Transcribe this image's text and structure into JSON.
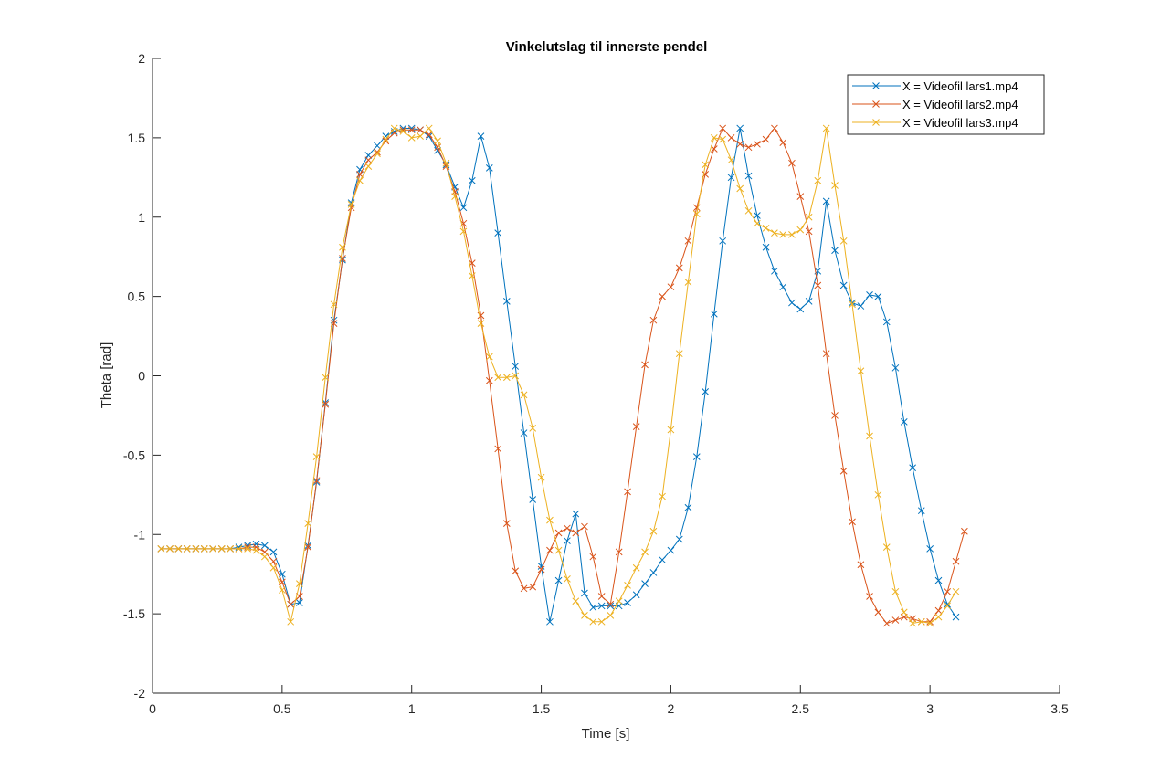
{
  "chart_data": {
    "type": "line",
    "title": "Vinkelutslag til innerste pendel",
    "xlabel": "Time [s]",
    "ylabel": "Theta [rad]",
    "xlim": [
      0,
      3.5
    ],
    "ylim": [
      -2,
      2
    ],
    "xticks": [
      0,
      0.5,
      1,
      1.5,
      2,
      2.5,
      3,
      3.5
    ],
    "xtick_labels": [
      "0",
      "0.5",
      "1",
      "1.5",
      "2",
      "2.5",
      "3",
      "3.5"
    ],
    "yticks": [
      -2,
      -1.5,
      -1,
      -0.5,
      0,
      0.5,
      1,
      1.5,
      2
    ],
    "ytick_labels": [
      "-2",
      "-1.5",
      "-1",
      "-0.5",
      "0",
      "0.5",
      "1",
      "1.5",
      "2"
    ],
    "grid": false,
    "legend_position": "top-right",
    "marker": "x",
    "series": [
      {
        "name": "X = Videofil  lars1.mp4",
        "color": "#0072BD",
        "points": [
          [
            0.033,
            -1.09
          ],
          [
            0.067,
            -1.09
          ],
          [
            0.1,
            -1.09
          ],
          [
            0.133,
            -1.09
          ],
          [
            0.167,
            -1.09
          ],
          [
            0.2,
            -1.09
          ],
          [
            0.233,
            -1.09
          ],
          [
            0.267,
            -1.09
          ],
          [
            0.3,
            -1.09
          ],
          [
            0.333,
            -1.08
          ],
          [
            0.367,
            -1.07
          ],
          [
            0.4,
            -1.06
          ],
          [
            0.433,
            -1.07
          ],
          [
            0.467,
            -1.11
          ],
          [
            0.5,
            -1.25
          ],
          [
            0.533,
            -1.44
          ],
          [
            0.567,
            -1.43
          ],
          [
            0.6,
            -1.07
          ],
          [
            0.633,
            -0.67
          ],
          [
            0.667,
            -0.17
          ],
          [
            0.7,
            0.35
          ],
          [
            0.733,
            0.73
          ],
          [
            0.767,
            1.09
          ],
          [
            0.8,
            1.3
          ],
          [
            0.833,
            1.39
          ],
          [
            0.867,
            1.45
          ],
          [
            0.9,
            1.51
          ],
          [
            0.933,
            1.54
          ],
          [
            0.967,
            1.56
          ],
          [
            1.0,
            1.56
          ],
          [
            1.033,
            1.55
          ],
          [
            1.067,
            1.51
          ],
          [
            1.1,
            1.42
          ],
          [
            1.133,
            1.33
          ],
          [
            1.167,
            1.19
          ],
          [
            1.2,
            1.06
          ],
          [
            1.233,
            1.23
          ],
          [
            1.267,
            1.51
          ],
          [
            1.3,
            1.31
          ],
          [
            1.333,
            0.9
          ],
          [
            1.367,
            0.47
          ],
          [
            1.4,
            0.06
          ],
          [
            1.433,
            -0.36
          ],
          [
            1.467,
            -0.78
          ],
          [
            1.5,
            -1.2
          ],
          [
            1.533,
            -1.55
          ],
          [
            1.567,
            -1.29
          ],
          [
            1.6,
            -1.04
          ],
          [
            1.633,
            -0.87
          ],
          [
            1.667,
            -1.37
          ],
          [
            1.7,
            -1.46
          ],
          [
            1.733,
            -1.45
          ],
          [
            1.767,
            -1.45
          ],
          [
            1.8,
            -1.45
          ],
          [
            1.833,
            -1.43
          ],
          [
            1.867,
            -1.38
          ],
          [
            1.9,
            -1.31
          ],
          [
            1.933,
            -1.24
          ],
          [
            1.967,
            -1.16
          ],
          [
            2.0,
            -1.1
          ],
          [
            2.033,
            -1.03
          ],
          [
            2.067,
            -0.83
          ],
          [
            2.1,
            -0.51
          ],
          [
            2.133,
            -0.1
          ],
          [
            2.167,
            0.39
          ],
          [
            2.2,
            0.85
          ],
          [
            2.233,
            1.25
          ],
          [
            2.267,
            1.56
          ],
          [
            2.3,
            1.26
          ],
          [
            2.333,
            1.01
          ],
          [
            2.367,
            0.81
          ],
          [
            2.4,
            0.66
          ],
          [
            2.433,
            0.56
          ],
          [
            2.467,
            0.46
          ],
          [
            2.5,
            0.42
          ],
          [
            2.533,
            0.47
          ],
          [
            2.567,
            0.66
          ],
          [
            2.6,
            1.1
          ],
          [
            2.633,
            0.79
          ],
          [
            2.667,
            0.57
          ],
          [
            2.7,
            0.46
          ],
          [
            2.733,
            0.44
          ],
          [
            2.767,
            0.51
          ],
          [
            2.8,
            0.5
          ],
          [
            2.833,
            0.34
          ],
          [
            2.867,
            0.05
          ],
          [
            2.9,
            -0.29
          ],
          [
            2.933,
            -0.58
          ],
          [
            2.967,
            -0.85
          ],
          [
            3.0,
            -1.09
          ],
          [
            3.033,
            -1.29
          ],
          [
            3.067,
            -1.44
          ],
          [
            3.1,
            -1.52
          ]
        ]
      },
      {
        "name": "X = Videofil  lars2.mp4",
        "color": "#D95319",
        "points": [
          [
            0.033,
            -1.09
          ],
          [
            0.067,
            -1.09
          ],
          [
            0.1,
            -1.09
          ],
          [
            0.133,
            -1.09
          ],
          [
            0.167,
            -1.09
          ],
          [
            0.2,
            -1.09
          ],
          [
            0.233,
            -1.09
          ],
          [
            0.267,
            -1.09
          ],
          [
            0.3,
            -1.09
          ],
          [
            0.333,
            -1.09
          ],
          [
            0.367,
            -1.08
          ],
          [
            0.4,
            -1.08
          ],
          [
            0.433,
            -1.11
          ],
          [
            0.467,
            -1.17
          ],
          [
            0.5,
            -1.3
          ],
          [
            0.533,
            -1.44
          ],
          [
            0.567,
            -1.39
          ],
          [
            0.6,
            -1.08
          ],
          [
            0.633,
            -0.66
          ],
          [
            0.667,
            -0.18
          ],
          [
            0.7,
            0.33
          ],
          [
            0.733,
            0.74
          ],
          [
            0.767,
            1.06
          ],
          [
            0.8,
            1.27
          ],
          [
            0.833,
            1.36
          ],
          [
            0.867,
            1.41
          ],
          [
            0.9,
            1.48
          ],
          [
            0.933,
            1.53
          ],
          [
            0.967,
            1.55
          ],
          [
            1.0,
            1.55
          ],
          [
            1.033,
            1.55
          ],
          [
            1.067,
            1.52
          ],
          [
            1.1,
            1.44
          ],
          [
            1.133,
            1.32
          ],
          [
            1.167,
            1.16
          ],
          [
            1.2,
            0.96
          ],
          [
            1.233,
            0.71
          ],
          [
            1.267,
            0.38
          ],
          [
            1.3,
            -0.03
          ],
          [
            1.333,
            -0.46
          ],
          [
            1.367,
            -0.93
          ],
          [
            1.4,
            -1.23
          ],
          [
            1.433,
            -1.34
          ],
          [
            1.467,
            -1.33
          ],
          [
            1.5,
            -1.22
          ],
          [
            1.533,
            -1.1
          ],
          [
            1.567,
            -0.99
          ],
          [
            1.6,
            -0.96
          ],
          [
            1.633,
            -0.99
          ],
          [
            1.667,
            -0.95
          ],
          [
            1.7,
            -1.14
          ],
          [
            1.733,
            -1.39
          ],
          [
            1.767,
            -1.44
          ],
          [
            1.8,
            -1.11
          ],
          [
            1.833,
            -0.73
          ],
          [
            1.867,
            -0.32
          ],
          [
            1.9,
            0.07
          ],
          [
            1.933,
            0.35
          ],
          [
            1.967,
            0.5
          ],
          [
            2.0,
            0.56
          ],
          [
            2.033,
            0.68
          ],
          [
            2.067,
            0.85
          ],
          [
            2.1,
            1.06
          ],
          [
            2.133,
            1.27
          ],
          [
            2.167,
            1.43
          ],
          [
            2.2,
            1.56
          ],
          [
            2.233,
            1.5
          ],
          [
            2.267,
            1.46
          ],
          [
            2.3,
            1.44
          ],
          [
            2.333,
            1.46
          ],
          [
            2.367,
            1.49
          ],
          [
            2.4,
            1.56
          ],
          [
            2.433,
            1.47
          ],
          [
            2.467,
            1.34
          ],
          [
            2.5,
            1.13
          ],
          [
            2.533,
            0.91
          ],
          [
            2.567,
            0.57
          ],
          [
            2.6,
            0.14
          ],
          [
            2.633,
            -0.25
          ],
          [
            2.667,
            -0.6
          ],
          [
            2.7,
            -0.92
          ],
          [
            2.733,
            -1.19
          ],
          [
            2.767,
            -1.39
          ],
          [
            2.8,
            -1.49
          ],
          [
            2.833,
            -1.56
          ],
          [
            2.867,
            -1.54
          ],
          [
            2.9,
            -1.52
          ],
          [
            2.933,
            -1.53
          ],
          [
            2.967,
            -1.55
          ],
          [
            3.0,
            -1.55
          ],
          [
            3.033,
            -1.48
          ],
          [
            3.067,
            -1.36
          ],
          [
            3.1,
            -1.17
          ],
          [
            3.133,
            -0.98
          ]
        ]
      },
      {
        "name": "X = Videofil  lars3.mp4",
        "color": "#EDB120",
        "points": [
          [
            0.033,
            -1.09
          ],
          [
            0.067,
            -1.09
          ],
          [
            0.1,
            -1.09
          ],
          [
            0.133,
            -1.09
          ],
          [
            0.167,
            -1.09
          ],
          [
            0.2,
            -1.09
          ],
          [
            0.233,
            -1.09
          ],
          [
            0.267,
            -1.09
          ],
          [
            0.3,
            -1.09
          ],
          [
            0.333,
            -1.09
          ],
          [
            0.367,
            -1.09
          ],
          [
            0.4,
            -1.1
          ],
          [
            0.433,
            -1.14
          ],
          [
            0.467,
            -1.21
          ],
          [
            0.5,
            -1.35
          ],
          [
            0.533,
            -1.55
          ],
          [
            0.567,
            -1.31
          ],
          [
            0.6,
            -0.93
          ],
          [
            0.633,
            -0.51
          ],
          [
            0.667,
            -0.01
          ],
          [
            0.7,
            0.45
          ],
          [
            0.733,
            0.81
          ],
          [
            0.767,
            1.08
          ],
          [
            0.8,
            1.23
          ],
          [
            0.833,
            1.32
          ],
          [
            0.867,
            1.4
          ],
          [
            0.9,
            1.49
          ],
          [
            0.933,
            1.56
          ],
          [
            0.967,
            1.54
          ],
          [
            1.0,
            1.5
          ],
          [
            1.033,
            1.51
          ],
          [
            1.067,
            1.56
          ],
          [
            1.1,
            1.48
          ],
          [
            1.133,
            1.34
          ],
          [
            1.167,
            1.13
          ],
          [
            1.2,
            0.91
          ],
          [
            1.233,
            0.63
          ],
          [
            1.267,
            0.33
          ],
          [
            1.3,
            0.12
          ],
          [
            1.333,
            -0.01
          ],
          [
            1.367,
            -0.01
          ],
          [
            1.4,
            0.0
          ],
          [
            1.433,
            -0.12
          ],
          [
            1.467,
            -0.33
          ],
          [
            1.5,
            -0.64
          ],
          [
            1.533,
            -0.91
          ],
          [
            1.567,
            -1.1
          ],
          [
            1.6,
            -1.28
          ],
          [
            1.633,
            -1.42
          ],
          [
            1.667,
            -1.51
          ],
          [
            1.7,
            -1.55
          ],
          [
            1.733,
            -1.55
          ],
          [
            1.767,
            -1.51
          ],
          [
            1.8,
            -1.42
          ],
          [
            1.833,
            -1.32
          ],
          [
            1.867,
            -1.21
          ],
          [
            1.9,
            -1.11
          ],
          [
            1.933,
            -0.98
          ],
          [
            1.967,
            -0.76
          ],
          [
            2.0,
            -0.34
          ],
          [
            2.033,
            0.14
          ],
          [
            2.067,
            0.59
          ],
          [
            2.1,
            1.02
          ],
          [
            2.133,
            1.33
          ],
          [
            2.167,
            1.5
          ],
          [
            2.2,
            1.49
          ],
          [
            2.233,
            1.36
          ],
          [
            2.267,
            1.18
          ],
          [
            2.3,
            1.04
          ],
          [
            2.333,
            0.96
          ],
          [
            2.367,
            0.93
          ],
          [
            2.4,
            0.9
          ],
          [
            2.433,
            0.89
          ],
          [
            2.467,
            0.89
          ],
          [
            2.5,
            0.92
          ],
          [
            2.533,
            1.0
          ],
          [
            2.567,
            1.23
          ],
          [
            2.6,
            1.56
          ],
          [
            2.633,
            1.2
          ],
          [
            2.667,
            0.85
          ],
          [
            2.7,
            0.45
          ],
          [
            2.733,
            0.03
          ],
          [
            2.767,
            -0.38
          ],
          [
            2.8,
            -0.75
          ],
          [
            2.833,
            -1.08
          ],
          [
            2.867,
            -1.36
          ],
          [
            2.9,
            -1.49
          ],
          [
            2.933,
            -1.56
          ],
          [
            2.967,
            -1.55
          ],
          [
            3.0,
            -1.56
          ],
          [
            3.033,
            -1.52
          ],
          [
            3.067,
            -1.45
          ],
          [
            3.1,
            -1.36
          ]
        ]
      }
    ]
  }
}
